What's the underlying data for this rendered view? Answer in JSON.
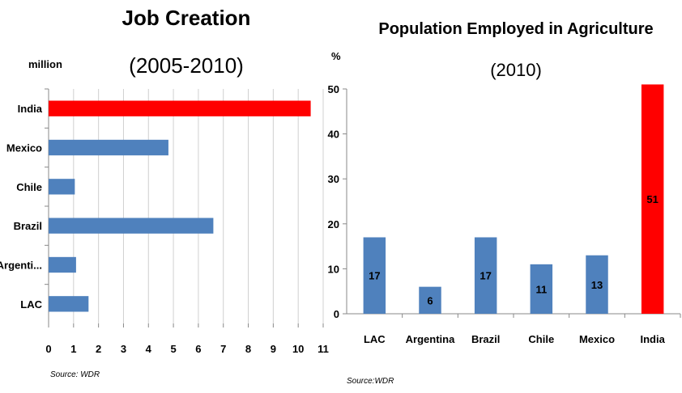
{
  "chart_data": [
    {
      "type": "bar",
      "orientation": "horizontal",
      "title": "Job Creation",
      "subtitle": "(2005-2010)",
      "unit_label": "million",
      "source": "Source: WDR",
      "categories": [
        "India",
        "Mexico",
        "Chile",
        "Brazil",
        "Argenti...",
        "LAC"
      ],
      "values": [
        10.5,
        4.8,
        1.05,
        6.6,
        1.1,
        1.6
      ],
      "colors": [
        "#ff0000",
        "#4f81bd",
        "#4f81bd",
        "#4f81bd",
        "#4f81bd",
        "#4f81bd"
      ],
      "xlim": [
        0,
        11
      ],
      "xticks": [
        "0",
        "1",
        "2",
        "3",
        "4",
        "5",
        "6",
        "7",
        "8",
        "9",
        "10",
        "11"
      ],
      "grid": "vertical"
    },
    {
      "type": "bar",
      "title": "Population Employed in Agriculture",
      "subtitle": "(2010)",
      "unit_label": "%",
      "source": "Source:WDR",
      "categories": [
        "LAC",
        "Argentina",
        "Brazil",
        "Chile",
        "Mexico",
        "India"
      ],
      "values": [
        17,
        6,
        17,
        11,
        13,
        51
      ],
      "data_labels": [
        "17",
        "6",
        "17",
        "11",
        "13",
        "51"
      ],
      "colors": [
        "#4f81bd",
        "#4f81bd",
        "#4f81bd",
        "#4f81bd",
        "#4f81bd",
        "#ff0000"
      ],
      "ylim": [
        0,
        50
      ],
      "yticks": [
        "0",
        "10",
        "20",
        "30",
        "40",
        "50"
      ],
      "grid": "horizontal"
    }
  ]
}
